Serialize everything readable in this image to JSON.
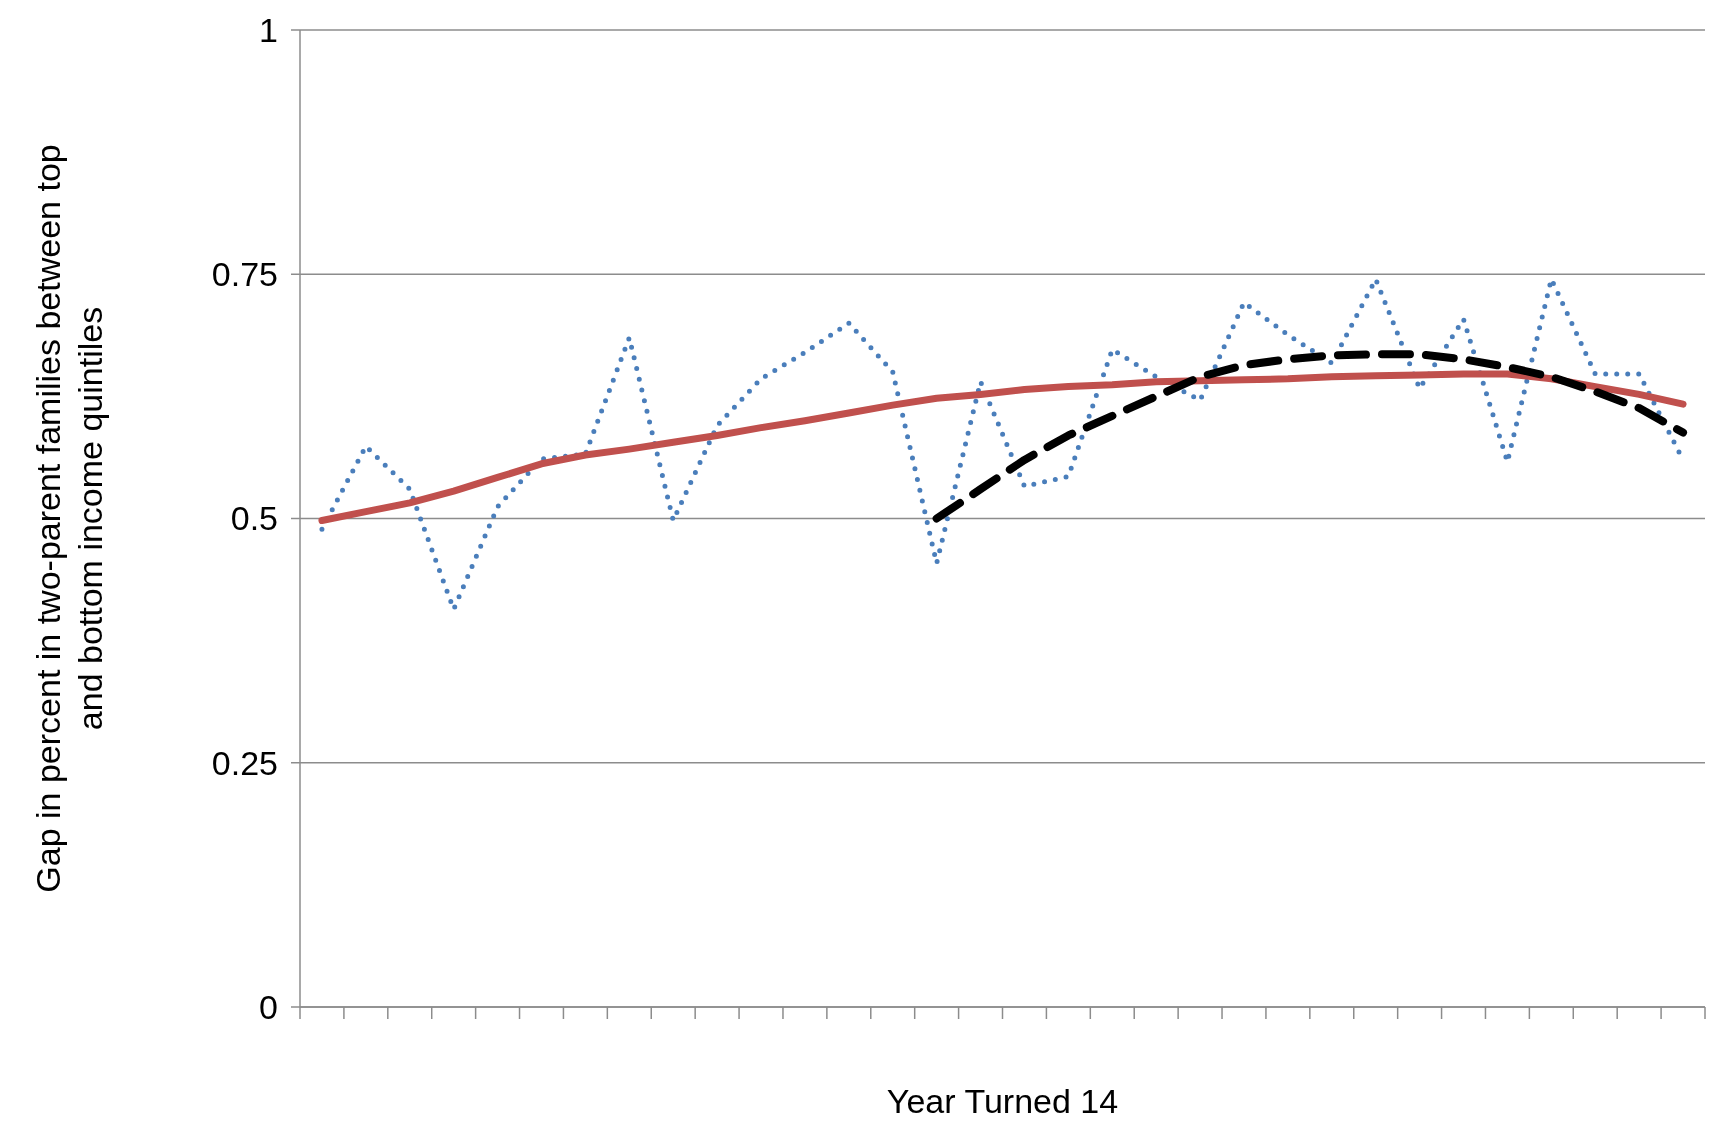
{
  "chart_data": {
    "type": "line",
    "xlabel": "Year Turned 14",
    "ylabel": "Gap in percent in two-parent families between top and bottom income quintiles",
    "categories": [
      null,
      null,
      null,
      null,
      null,
      null,
      null,
      null,
      null,
      null,
      null,
      null,
      null,
      null,
      null,
      null,
      null,
      null,
      null,
      null,
      null,
      null,
      null,
      null,
      null,
      null,
      null,
      null,
      null,
      null,
      null,
      null
    ],
    "series": [
      {
        "color": "#4a7ebb",
        "line_style": "dotted",
        "values": [
          0.489,
          0.574,
          0.53,
          0.407,
          0.512,
          0.561,
          0.566,
          0.685,
          0.498,
          0.595,
          0.643,
          0.67,
          0.7,
          0.65,
          0.454,
          0.64,
          0.533,
          0.543,
          0.673,
          0.645,
          0.621,
          0.721,
          0.688,
          0.659,
          0.745,
          0.633,
          0.704,
          0.558,
          0.745,
          0.648,
          0.648,
          0.56
        ]
      },
      {
        "color": "#c0504d",
        "line_style": "solid",
        "values": [
          0.498,
          0.507,
          0.516,
          0.528,
          0.542,
          0.556,
          0.565,
          0.571,
          0.578,
          0.585,
          0.593,
          0.6,
          0.608,
          0.616,
          0.623,
          0.627,
          0.632,
          0.635,
          0.637,
          0.64,
          0.641,
          0.642,
          0.643,
          0.645,
          0.646,
          0.647,
          0.648,
          0.648,
          0.643,
          0.635,
          0.627,
          0.617
        ]
      },
      {
        "color": "#000000",
        "line_style": "dashed",
        "values": [
          null,
          null,
          null,
          null,
          null,
          null,
          null,
          null,
          null,
          null,
          null,
          null,
          null,
          null,
          0.5,
          0.53,
          0.56,
          0.585,
          0.605,
          0.625,
          0.645,
          0.657,
          0.663,
          0.667,
          0.668,
          0.668,
          0.663,
          0.655,
          0.645,
          0.63,
          0.613,
          0.588
        ]
      }
    ],
    "ylim": [
      0,
      1
    ],
    "yticks": [
      0,
      0.25,
      0.5,
      0.75,
      1
    ],
    "grid": "y",
    "marker": "none"
  }
}
